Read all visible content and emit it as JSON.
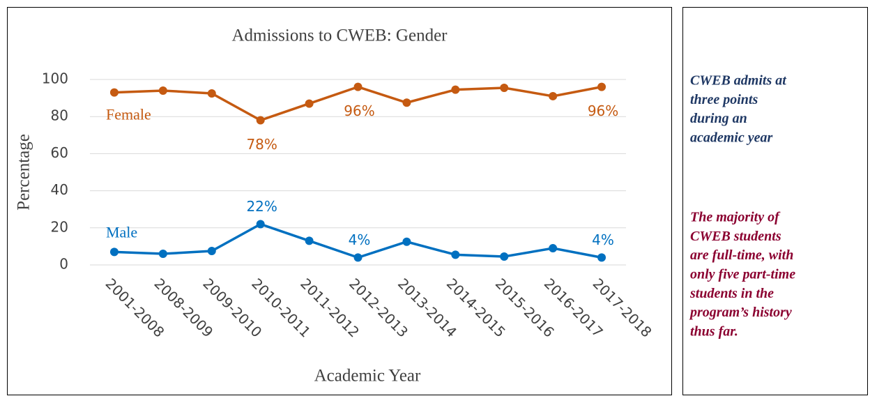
{
  "chart_data": {
    "type": "line",
    "title": "Admissions to CWEB: Gender",
    "x_label": "Academic Year",
    "y_label": "Percentage",
    "categories": [
      "2001-2008",
      "2008-2009",
      "2009-2010",
      "2010-2011",
      "2011-2012",
      "2012-2013",
      "2013-2014",
      "2014-2015",
      "2015-2016",
      "2016-2017",
      "2017-2018"
    ],
    "series": [
      {
        "name": "Female",
        "color": "#c55a11",
        "values": [
          93,
          94,
          92.5,
          78,
          87,
          96,
          87.5,
          94.5,
          95.5,
          91,
          96
        ],
        "value_labels": [
          null,
          null,
          null,
          "78%",
          null,
          "96%",
          null,
          null,
          null,
          null,
          "96%"
        ]
      },
      {
        "name": "Male",
        "color": "#0070c0",
        "values": [
          7,
          6,
          7.5,
          22,
          13,
          4,
          12.5,
          5.5,
          4.5,
          9,
          4
        ],
        "value_labels": [
          null,
          null,
          null,
          "22%",
          null,
          "4%",
          null,
          null,
          null,
          null,
          "4%"
        ]
      }
    ],
    "ylim": [
      0,
      100
    ],
    "yticks": [
      0,
      20,
      40,
      60,
      80,
      100
    ],
    "grid": true
  },
  "notes": [
    {
      "color": "#1f3864",
      "lines": [
        "CWEB admits at",
        "three points",
        "during an",
        "academic year"
      ]
    },
    {
      "color": "#8b0030",
      "lines": [
        "The majority of",
        "CWEB students",
        "are full-time, with",
        "only five part-time",
        "students in the",
        "program’s history",
        "thus far."
      ]
    }
  ]
}
